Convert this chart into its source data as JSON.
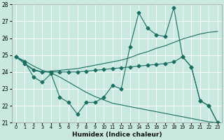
{
  "xlabel": "Humidex (Indice chaleur)",
  "bg_color": "#c8e8e0",
  "line_color": "#1a6e62",
  "x": [
    0,
    1,
    2,
    3,
    4,
    5,
    6,
    7,
    8,
    9,
    10,
    11,
    12,
    13,
    14,
    15,
    16,
    17,
    18,
    19,
    20,
    21,
    22,
    23
  ],
  "y_main": [
    24.9,
    24.6,
    23.7,
    23.4,
    23.9,
    22.5,
    22.2,
    21.5,
    22.2,
    22.2,
    22.5,
    23.2,
    23.0,
    25.5,
    27.5,
    26.6,
    26.2,
    26.1,
    27.8,
    24.9,
    24.3,
    22.3,
    22.0,
    21.0
  ],
  "y_trend_up": [
    24.9,
    24.5,
    24.15,
    24.0,
    24.05,
    24.1,
    24.15,
    24.2,
    24.3,
    24.4,
    24.5,
    24.6,
    24.7,
    24.85,
    25.05,
    25.2,
    25.4,
    25.55,
    25.75,
    25.95,
    26.1,
    26.25,
    26.35,
    26.4
  ],
  "y_trend_down": [
    24.9,
    24.65,
    24.35,
    24.1,
    23.95,
    23.7,
    23.4,
    23.1,
    22.8,
    22.55,
    22.35,
    22.15,
    22.05,
    21.95,
    21.85,
    21.75,
    21.65,
    21.55,
    21.45,
    21.35,
    21.25,
    21.15,
    21.05,
    21.0
  ],
  "y_flat_drop": [
    24.9,
    24.5,
    24.1,
    24.0,
    24.0,
    24.0,
    24.0,
    24.0,
    24.05,
    24.1,
    24.15,
    24.2,
    24.25,
    24.3,
    24.35,
    24.4,
    24.45,
    24.5,
    24.6,
    24.9,
    24.3,
    22.3,
    22.0,
    21.0
  ],
  "ylim": [
    21,
    28
  ],
  "xlim": [
    -0.5,
    23.5
  ],
  "yticks": [
    21,
    22,
    23,
    24,
    25,
    26,
    27,
    28
  ],
  "xticks": [
    0,
    1,
    2,
    3,
    4,
    5,
    6,
    7,
    8,
    9,
    10,
    11,
    12,
    13,
    14,
    15,
    16,
    17,
    18,
    19,
    20,
    21,
    22,
    23
  ]
}
